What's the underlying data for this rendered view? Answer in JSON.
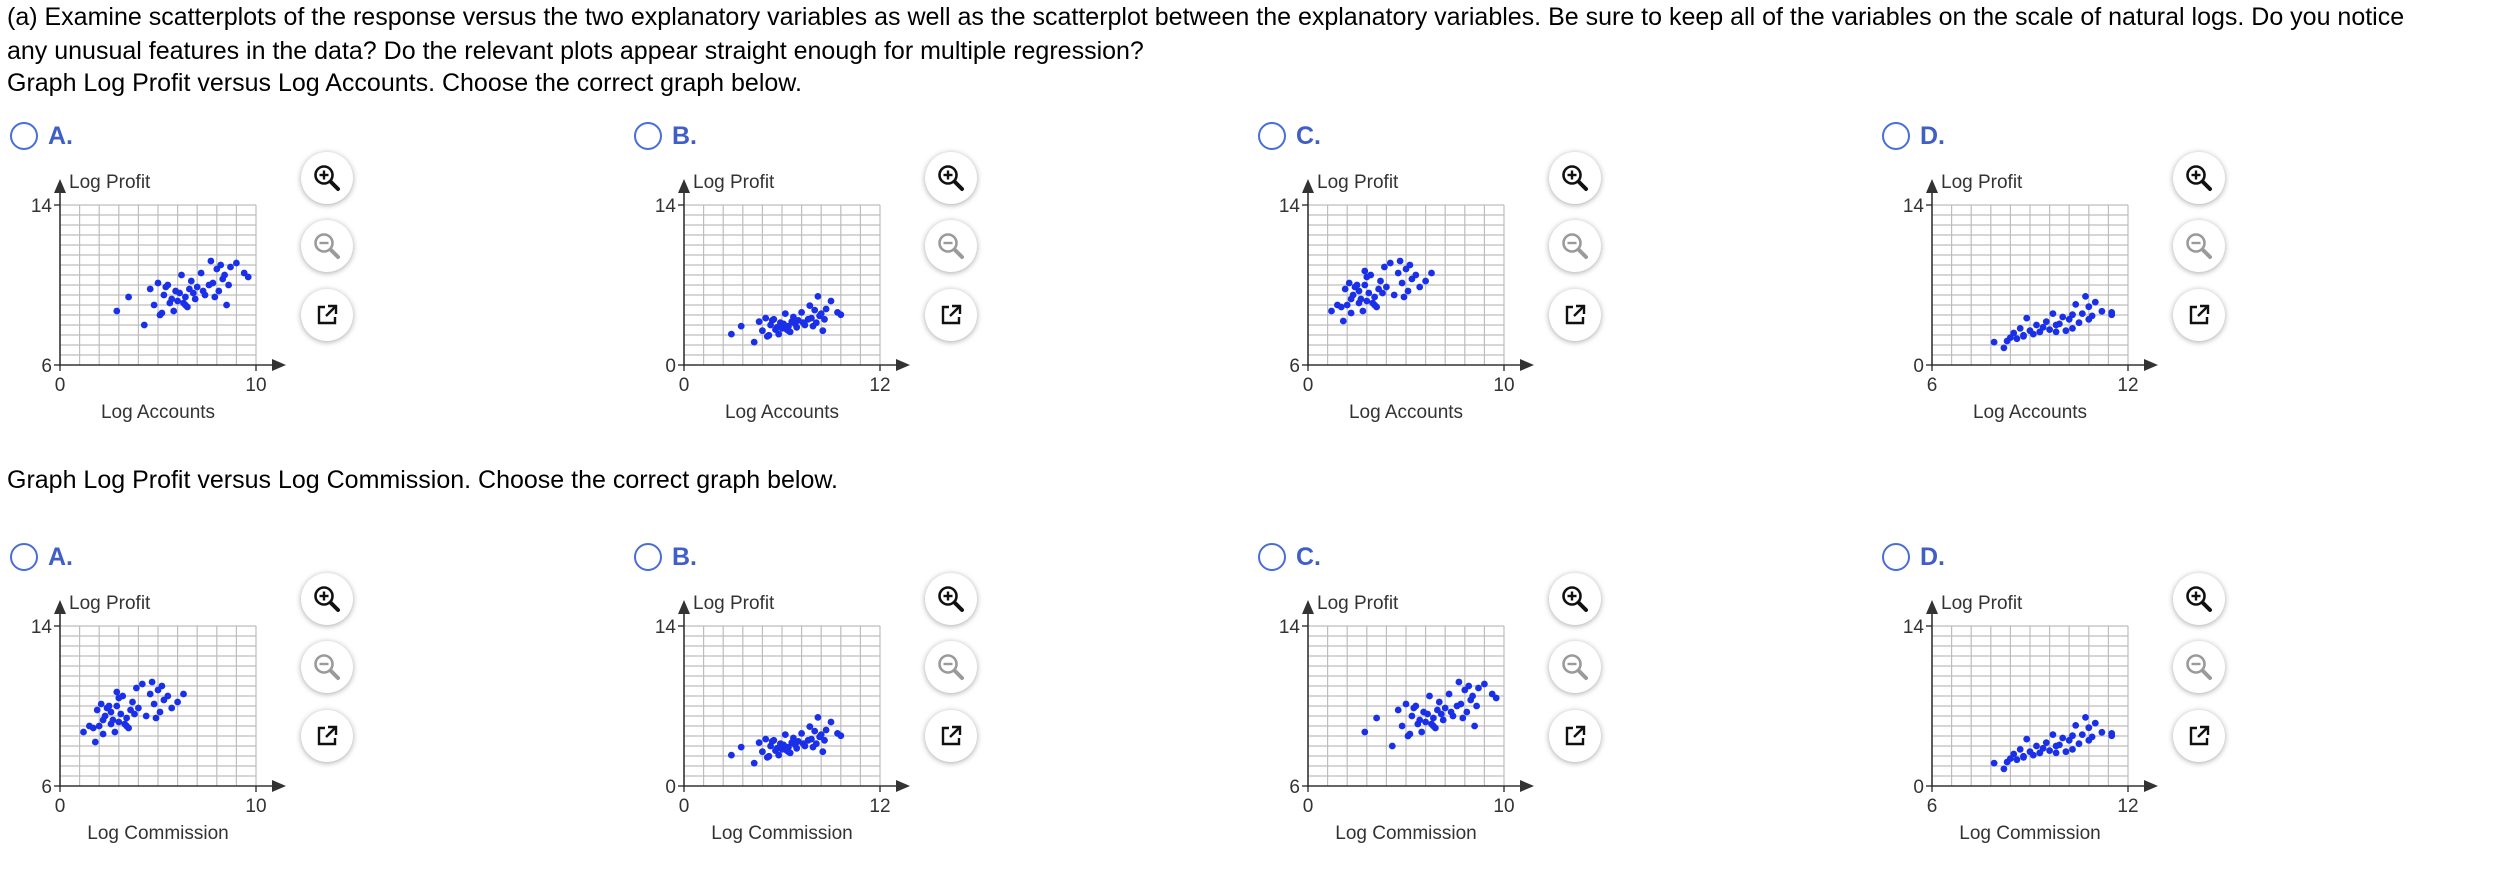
{
  "question": {
    "line1": "(a) Examine scatterplots of the response versus the two explanatory variables as well as the scatterplot between the explanatory variables. Be sure to keep all of the variables on the scale of natural logs. Do you notice",
    "line2": "any unusual features in the data? Do the relevant plots appear straight enough for multiple regression?"
  },
  "groups": [
    {
      "prompt": "Graph Log Profit versus Log Accounts. Choose the correct graph below.",
      "xlabel": "Log Accounts",
      "ylabel": "Log Profit",
      "options": [
        {
          "letter": "A.",
          "xmin": "0",
          "xmax": "10",
          "ymin": "6",
          "ymax": "14"
        },
        {
          "letter": "B.",
          "xmin": "0",
          "xmax": "12",
          "ymin": "0",
          "ymax": "14"
        },
        {
          "letter": "C.",
          "xmin": "0",
          "xmax": "10",
          "ymin": "6",
          "ymax": "14"
        },
        {
          "letter": "D.",
          "xmin": "6",
          "xmax": "12",
          "ymin": "0",
          "ymax": "14"
        }
      ]
    },
    {
      "prompt": "Graph Log Profit versus Log Commission. Choose the correct graph below.",
      "xlabel": "Log Commission",
      "ylabel": "Log Profit",
      "options": [
        {
          "letter": "A.",
          "xmin": "0",
          "xmax": "10",
          "ymin": "6",
          "ymax": "14"
        },
        {
          "letter": "B.",
          "xmin": "0",
          "xmax": "12",
          "ymin": "0",
          "ymax": "14"
        },
        {
          "letter": "C.",
          "xmin": "0",
          "xmax": "10",
          "ymin": "6",
          "ymax": "14"
        },
        {
          "letter": "D.",
          "xmin": "6",
          "xmax": "12",
          "ymin": "0",
          "ymax": "14"
        }
      ]
    }
  ],
  "tools": {
    "zoom_in": "zoom-in-icon",
    "zoom_out": "zoom-out-icon",
    "open": "open-in-new-window-icon"
  },
  "colors": {
    "accent": "#3f5fc7",
    "points": "#1a2fe8",
    "grid": "#bdbdbd",
    "axis": "#333333"
  },
  "chart_data": [
    {
      "type": "scatter",
      "name": "Profit vs Accounts A",
      "xlabel": "Log Accounts",
      "ylabel": "Log Profit",
      "xlim": [
        0,
        10
      ],
      "ylim": [
        6,
        14
      ],
      "x": [
        2.9,
        3.5,
        4.3,
        4.6,
        4.8,
        5.0,
        5.2,
        5.3,
        5.4,
        5.5,
        5.6,
        5.7,
        5.8,
        5.9,
        6.0,
        6.1,
        6.2,
        6.3,
        6.4,
        6.5,
        6.6,
        6.7,
        6.8,
        6.9,
        7.0,
        7.2,
        7.4,
        7.6,
        7.7,
        7.8,
        7.9,
        8.0,
        8.1,
        8.2,
        8.3,
        8.4,
        8.5,
        8.7,
        9.0,
        9.4,
        9.6,
        5.1,
        6.4,
        7.3,
        8.6
      ],
      "y": [
        8.7,
        9.4,
        8.0,
        9.8,
        9.0,
        10.1,
        8.6,
        9.5,
        9.9,
        10.0,
        9.1,
        9.3,
        8.7,
        9.7,
        9.2,
        9.6,
        10.5,
        9.1,
        9.4,
        8.9,
        9.8,
        10.2,
        9.6,
        9.3,
        9.9,
        10.6,
        9.5,
        10.0,
        11.2,
        10.1,
        9.4,
        10.8,
        9.7,
        11.0,
        10.3,
        10.5,
        9.0,
        10.9,
        11.1,
        10.6,
        10.4,
        8.5,
        9.0,
        9.7,
        10.0
      ]
    },
    {
      "type": "scatter",
      "name": "Profit vs Accounts B",
      "xlabel": "Log Accounts",
      "ylabel": "Log Profit",
      "xlim": [
        0,
        12
      ],
      "ylim": [
        0,
        14
      ],
      "x": [
        2.9,
        3.5,
        4.3,
        4.6,
        4.8,
        5.0,
        5.2,
        5.3,
        5.4,
        5.5,
        5.6,
        5.7,
        5.8,
        5.9,
        6.0,
        6.1,
        6.2,
        6.3,
        6.4,
        6.5,
        6.6,
        6.7,
        6.8,
        6.9,
        7.0,
        7.2,
        7.4,
        7.6,
        7.7,
        7.8,
        7.9,
        8.0,
        8.1,
        8.2,
        8.3,
        8.4,
        8.5,
        8.7,
        9.0,
        9.4,
        9.6,
        5.1,
        6.4,
        7.3,
        8.6
      ],
      "y": [
        2.7,
        3.4,
        2.0,
        3.8,
        3.0,
        4.1,
        2.6,
        3.5,
        3.9,
        4.0,
        3.1,
        3.3,
        2.7,
        3.7,
        3.2,
        3.6,
        4.5,
        3.1,
        3.4,
        2.9,
        3.8,
        4.2,
        3.6,
        3.3,
        3.9,
        4.6,
        3.5,
        4.0,
        5.2,
        4.1,
        3.4,
        4.8,
        3.7,
        6.0,
        4.3,
        4.5,
        3.0,
        4.9,
        5.6,
        4.6,
        4.4,
        2.5,
        3.0,
        3.7,
        4.0
      ]
    },
    {
      "type": "scatter",
      "name": "Profit vs Accounts C",
      "xlabel": "Log Accounts",
      "ylabel": "Log Profit",
      "xlim": [
        0,
        10
      ],
      "ylim": [
        6,
        14
      ],
      "x": [
        1.2,
        1.5,
        1.8,
        1.9,
        2.0,
        2.1,
        2.2,
        2.3,
        2.4,
        2.5,
        2.6,
        2.7,
        2.8,
        2.9,
        3.0,
        3.1,
        3.2,
        3.3,
        3.4,
        3.5,
        3.6,
        3.7,
        3.8,
        3.9,
        4.0,
        4.2,
        4.4,
        4.6,
        4.7,
        4.8,
        4.9,
        5.0,
        5.1,
        5.2,
        5.3,
        5.5,
        5.7,
        6.0,
        6.3,
        2.2,
        2.6,
        3.0,
        3.4,
        1.7,
        2.9
      ],
      "y": [
        8.7,
        9.0,
        8.2,
        9.8,
        9.0,
        10.1,
        8.6,
        9.5,
        9.9,
        10.0,
        9.1,
        9.3,
        8.7,
        10.7,
        9.2,
        9.6,
        10.5,
        9.1,
        9.4,
        8.9,
        9.8,
        10.2,
        9.6,
        10.9,
        9.9,
        11.1,
        9.5,
        10.6,
        11.2,
        10.1,
        9.4,
        10.8,
        9.7,
        11.0,
        10.3,
        10.5,
        9.9,
        10.2,
        10.6,
        9.3,
        9.7,
        10.4,
        9.0,
        8.9,
        10.0
      ]
    },
    {
      "type": "scatter",
      "name": "Profit vs Accounts D",
      "xlabel": "Log Accounts",
      "ylabel": "Log Profit",
      "xlim": [
        6,
        12
      ],
      "ylim": [
        0,
        14
      ],
      "x": [
        7.9,
        8.2,
        8.4,
        8.5,
        8.6,
        8.7,
        8.8,
        8.9,
        9.0,
        9.1,
        9.2,
        9.3,
        9.4,
        9.5,
        9.6,
        9.7,
        9.8,
        9.9,
        10.0,
        10.1,
        10.2,
        10.3,
        10.4,
        10.5,
        10.6,
        10.7,
        10.8,
        10.9,
        11.0,
        11.2,
        11.5,
        8.3,
        8.8,
        9.3,
        9.8,
        10.3,
        10.8,
        11.5
      ],
      "y": [
        2.0,
        1.5,
        2.4,
        2.8,
        2.3,
        3.2,
        2.6,
        4.1,
        3.0,
        2.7,
        3.5,
        2.9,
        3.3,
        3.8,
        3.1,
        4.5,
        2.9,
        3.6,
        4.2,
        3.0,
        4.0,
        4.4,
        5.3,
        3.7,
        4.5,
        6.0,
        5.1,
        4.3,
        5.5,
        4.7,
        4.4,
        2.1,
        2.5,
        2.9,
        3.5,
        3.2,
        4.0,
        4.6
      ]
    },
    {
      "type": "scatter",
      "name": "Profit vs Commission A",
      "xlabel": "Log Commission",
      "ylabel": "Log Profit",
      "xlim": [
        0,
        10
      ],
      "ylim": [
        6,
        14
      ],
      "x": [
        1.2,
        1.5,
        1.8,
        1.9,
        2.0,
        2.1,
        2.2,
        2.3,
        2.4,
        2.5,
        2.6,
        2.7,
        2.8,
        2.9,
        3.0,
        3.1,
        3.2,
        3.3,
        3.4,
        3.5,
        3.6,
        3.7,
        3.8,
        3.9,
        4.0,
        4.2,
        4.4,
        4.6,
        4.7,
        4.8,
        4.9,
        5.0,
        5.1,
        5.2,
        5.3,
        5.5,
        5.7,
        6.0,
        6.3,
        2.2,
        2.6,
        3.0,
        3.4,
        1.7,
        2.9
      ],
      "y": [
        8.7,
        9.0,
        8.2,
        9.8,
        9.0,
        10.1,
        8.6,
        9.5,
        9.9,
        10.0,
        9.1,
        9.3,
        8.7,
        10.7,
        9.2,
        9.6,
        10.5,
        9.1,
        9.4,
        8.9,
        9.8,
        10.2,
        9.6,
        10.9,
        9.9,
        11.1,
        9.5,
        10.6,
        11.2,
        10.1,
        9.4,
        10.8,
        9.7,
        11.0,
        10.3,
        10.5,
        9.9,
        10.2,
        10.6,
        9.3,
        9.7,
        10.4,
        9.0,
        8.9,
        10.0
      ]
    },
    {
      "type": "scatter",
      "name": "Profit vs Commission B",
      "xlabel": "Log Commission",
      "ylabel": "Log Profit",
      "xlim": [
        0,
        12
      ],
      "ylim": [
        0,
        14
      ],
      "x": [
        2.9,
        3.5,
        4.3,
        4.6,
        4.8,
        5.0,
        5.2,
        5.3,
        5.4,
        5.5,
        5.6,
        5.7,
        5.8,
        5.9,
        6.0,
        6.1,
        6.2,
        6.3,
        6.4,
        6.5,
        6.6,
        6.7,
        6.8,
        6.9,
        7.0,
        7.2,
        7.4,
        7.6,
        7.7,
        7.8,
        7.9,
        8.0,
        8.1,
        8.2,
        8.3,
        8.4,
        8.5,
        8.7,
        9.0,
        9.4,
        9.6,
        5.1,
        6.4,
        7.3,
        8.6
      ],
      "y": [
        2.7,
        3.4,
        2.0,
        3.8,
        3.0,
        4.1,
        2.6,
        3.5,
        3.9,
        4.0,
        3.1,
        3.3,
        2.7,
        3.7,
        3.2,
        3.6,
        4.5,
        3.1,
        3.4,
        2.9,
        3.8,
        4.2,
        3.6,
        3.3,
        3.9,
        4.6,
        3.5,
        4.0,
        5.2,
        4.1,
        3.4,
        4.8,
        3.7,
        6.0,
        4.3,
        4.5,
        3.0,
        4.9,
        5.6,
        4.6,
        4.4,
        2.5,
        3.0,
        3.7,
        4.0
      ]
    },
    {
      "type": "scatter",
      "name": "Profit vs Commission C",
      "xlabel": "Log Commission",
      "ylabel": "Log Profit",
      "xlim": [
        0,
        10
      ],
      "ylim": [
        6,
        14
      ],
      "x": [
        2.9,
        3.5,
        4.3,
        4.6,
        4.8,
        5.0,
        5.2,
        5.3,
        5.4,
        5.5,
        5.6,
        5.7,
        5.8,
        5.9,
        6.0,
        6.1,
        6.2,
        6.3,
        6.4,
        6.5,
        6.6,
        6.7,
        6.8,
        6.9,
        7.0,
        7.2,
        7.4,
        7.6,
        7.7,
        7.8,
        7.9,
        8.0,
        8.1,
        8.2,
        8.3,
        8.4,
        8.5,
        8.7,
        9.0,
        9.4,
        9.6,
        5.1,
        6.4,
        7.3,
        8.6
      ],
      "y": [
        8.7,
        9.4,
        8.0,
        9.8,
        9.0,
        10.1,
        8.6,
        9.5,
        9.9,
        10.0,
        9.1,
        9.3,
        8.7,
        9.7,
        9.2,
        9.6,
        10.5,
        9.1,
        9.4,
        8.9,
        9.8,
        10.2,
        9.6,
        9.3,
        9.9,
        10.6,
        9.5,
        10.0,
        11.2,
        10.1,
        9.4,
        10.8,
        9.7,
        11.0,
        10.3,
        10.5,
        9.0,
        10.9,
        11.1,
        10.6,
        10.4,
        8.5,
        9.0,
        9.7,
        10.0
      ]
    },
    {
      "type": "scatter",
      "name": "Profit vs Commission D",
      "xlabel": "Log Commission",
      "ylabel": "Log Profit",
      "xlim": [
        6,
        12
      ],
      "ylim": [
        0,
        14
      ],
      "x": [
        7.9,
        8.2,
        8.4,
        8.5,
        8.6,
        8.7,
        8.8,
        8.9,
        9.0,
        9.1,
        9.2,
        9.3,
        9.4,
        9.5,
        9.6,
        9.7,
        9.8,
        9.9,
        10.0,
        10.1,
        10.2,
        10.3,
        10.4,
        10.5,
        10.6,
        10.7,
        10.8,
        10.9,
        11.0,
        11.2,
        11.5,
        8.3,
        8.8,
        9.3,
        9.8,
        10.3,
        10.8,
        11.5
      ],
      "y": [
        2.0,
        1.5,
        2.4,
        2.8,
        2.3,
        3.2,
        2.6,
        4.1,
        3.0,
        2.7,
        3.5,
        2.9,
        3.3,
        3.8,
        3.1,
        4.5,
        2.9,
        3.6,
        4.2,
        3.0,
        4.0,
        4.4,
        5.3,
        3.7,
        4.5,
        6.0,
        5.1,
        4.3,
        5.5,
        4.7,
        4.4,
        2.1,
        2.5,
        2.9,
        3.5,
        3.2,
        4.0,
        4.6
      ]
    }
  ]
}
